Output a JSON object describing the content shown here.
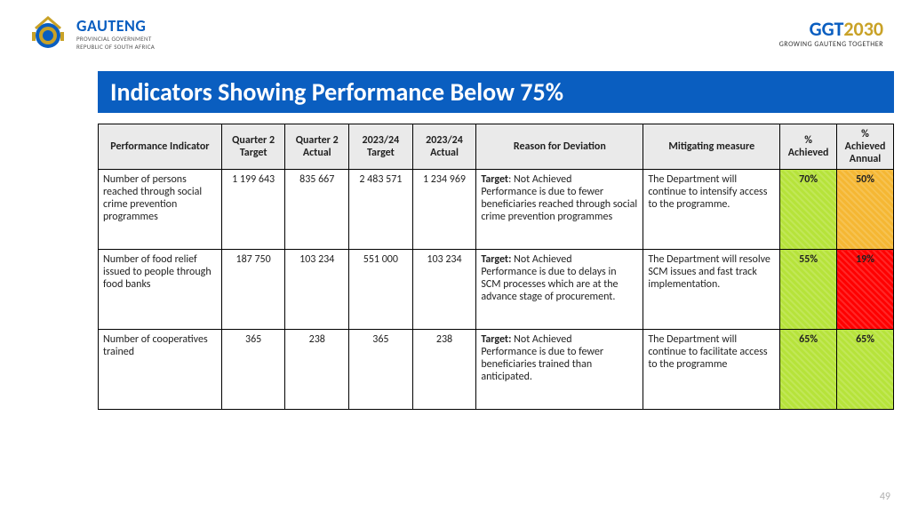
{
  "header": {
    "left": {
      "main": "GAUTENG",
      "sub1": "PROVINCIAL GOVERNMENT",
      "sub2": "REPUBLIC OF SOUTH AFRICA"
    },
    "right": {
      "prefix": "GGT",
      "year": "2030",
      "sub": "GROWING GAUTENG TOGETHER"
    }
  },
  "title": "Indicators Showing Performance Below 75%",
  "table": {
    "columns": [
      "Performance Indicator",
      "Quarter 2 Target",
      "Quarter 2 Actual",
      "2023/24 Target",
      "2023/24 Actual",
      "Reason for Deviation",
      "Mitigating measure",
      "% Achieved",
      "% Achieved Annual"
    ],
    "rows": [
      {
        "indicator": "Number of persons reached through social crime prevention programmes",
        "q2_target": "1 199 643",
        "q2_actual": "835 667",
        "y_target": "2 483 571",
        "y_actual": "1 234 969",
        "reason_label": "Target",
        "reason_status": ": Not Achieved",
        "reason_body": "Performance is due to fewer beneficiaries reached through social crime prevention programmes",
        "mitigating": "The Department will continue to intensify access to the programme.",
        "pct_achieved": "70%",
        "pct_achieved_color": "#b6e33a",
        "pct_annual": "50%",
        "pct_annual_color": "#f5b733"
      },
      {
        "indicator": "Number of food relief issued to people through food banks",
        "q2_target": "187 750",
        "q2_actual": "103 234",
        "y_target": "551 000",
        "y_actual": "103 234",
        "reason_label": "Target:",
        "reason_status": " Not Achieved",
        "reason_body": "Performance is due to delays in SCM processes which are at the advance stage of procurement.",
        "mitigating": "The Department will resolve SCM issues and fast track implementation.",
        "pct_achieved": "55%",
        "pct_achieved_color": "#b6e33a",
        "pct_annual": "19%",
        "pct_annual_color": "#ff0000"
      },
      {
        "indicator": "Number of cooperatives trained",
        "q2_target": "365",
        "q2_actual": "238",
        "y_target": "365",
        "y_actual": "238",
        "reason_label": "Target:",
        "reason_status": " Not Achieved",
        "reason_body": "Performance is due to fewer beneficiaries trained than anticipated.",
        "mitigating": "The Department will continue to facilitate access to the programme",
        "pct_achieved": "65%",
        "pct_achieved_color": "#b6e33a",
        "pct_annual": "65%",
        "pct_annual_color": "#b6e33a"
      }
    ]
  },
  "page_number": "49"
}
